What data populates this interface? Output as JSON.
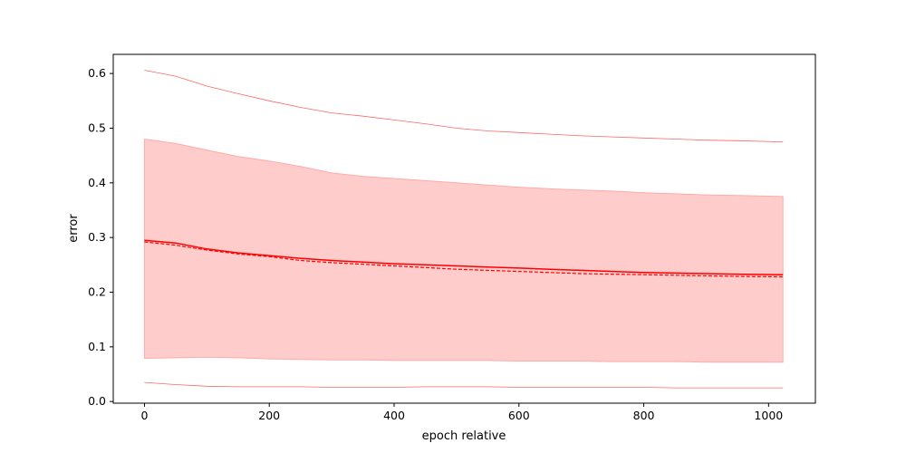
{
  "chart_data": {
    "type": "line",
    "title": "",
    "xlabel": "epoch relative",
    "ylabel": "error",
    "xlim": [
      -50,
      1075
    ],
    "ylim": [
      -0.003,
      0.635
    ],
    "xticks": [
      0,
      200,
      400,
      600,
      800,
      1000
    ],
    "yticks": [
      0.0,
      0.1,
      0.2,
      0.3,
      0.4,
      0.5,
      0.6
    ],
    "xtick_labels": [
      "0",
      "200",
      "400",
      "600",
      "800",
      "1000"
    ],
    "ytick_labels": [
      "0.0",
      "0.1",
      "0.2",
      "0.3",
      "0.4",
      "0.5",
      "0.6"
    ],
    "grid": false,
    "legend": "none",
    "x": [
      0,
      50,
      100,
      150,
      200,
      250,
      300,
      350,
      400,
      450,
      500,
      550,
      600,
      650,
      700,
      750,
      800,
      850,
      900,
      950,
      1023
    ],
    "series": [
      {
        "role": "mean",
        "style": "solid",
        "color": "#ff0000",
        "values": [
          0.295,
          0.29,
          0.279,
          0.272,
          0.267,
          0.262,
          0.258,
          0.255,
          0.252,
          0.25,
          0.248,
          0.246,
          0.244,
          0.242,
          0.24,
          0.238,
          0.236,
          0.235,
          0.234,
          0.233,
          0.232
        ]
      },
      {
        "role": "median",
        "style": "dashed",
        "color": "#ff0000",
        "values": [
          0.292,
          0.286,
          0.277,
          0.27,
          0.265,
          0.258,
          0.254,
          0.251,
          0.248,
          0.245,
          0.242,
          0.24,
          0.238,
          0.236,
          0.234,
          0.233,
          0.232,
          0.231,
          0.23,
          0.229,
          0.228
        ]
      },
      {
        "role": "band-upper",
        "style": "band",
        "color": "#ffcccc",
        "values": [
          0.48,
          0.472,
          0.46,
          0.448,
          0.44,
          0.43,
          0.418,
          0.412,
          0.408,
          0.404,
          0.4,
          0.396,
          0.392,
          0.389,
          0.387,
          0.385,
          0.382,
          0.38,
          0.378,
          0.377,
          0.375
        ]
      },
      {
        "role": "band-lower",
        "style": "band",
        "color": "#ffcccc",
        "values": [
          0.079,
          0.08,
          0.081,
          0.08,
          0.078,
          0.077,
          0.076,
          0.076,
          0.075,
          0.075,
          0.075,
          0.075,
          0.074,
          0.074,
          0.074,
          0.073,
          0.073,
          0.073,
          0.072,
          0.072,
          0.072
        ]
      },
      {
        "role": "max",
        "style": "thin",
        "color": "#ff6666",
        "values": [
          0.606,
          0.595,
          0.577,
          0.563,
          0.55,
          0.538,
          0.528,
          0.522,
          0.515,
          0.508,
          0.5,
          0.495,
          0.492,
          0.489,
          0.486,
          0.484,
          0.482,
          0.48,
          0.478,
          0.477,
          0.475
        ]
      },
      {
        "role": "min",
        "style": "thin",
        "color": "#ff6666",
        "values": [
          0.035,
          0.031,
          0.028,
          0.027,
          0.027,
          0.027,
          0.026,
          0.026,
          0.026,
          0.027,
          0.027,
          0.027,
          0.026,
          0.026,
          0.026,
          0.026,
          0.026,
          0.025,
          0.025,
          0.025,
          0.025
        ]
      }
    ]
  }
}
